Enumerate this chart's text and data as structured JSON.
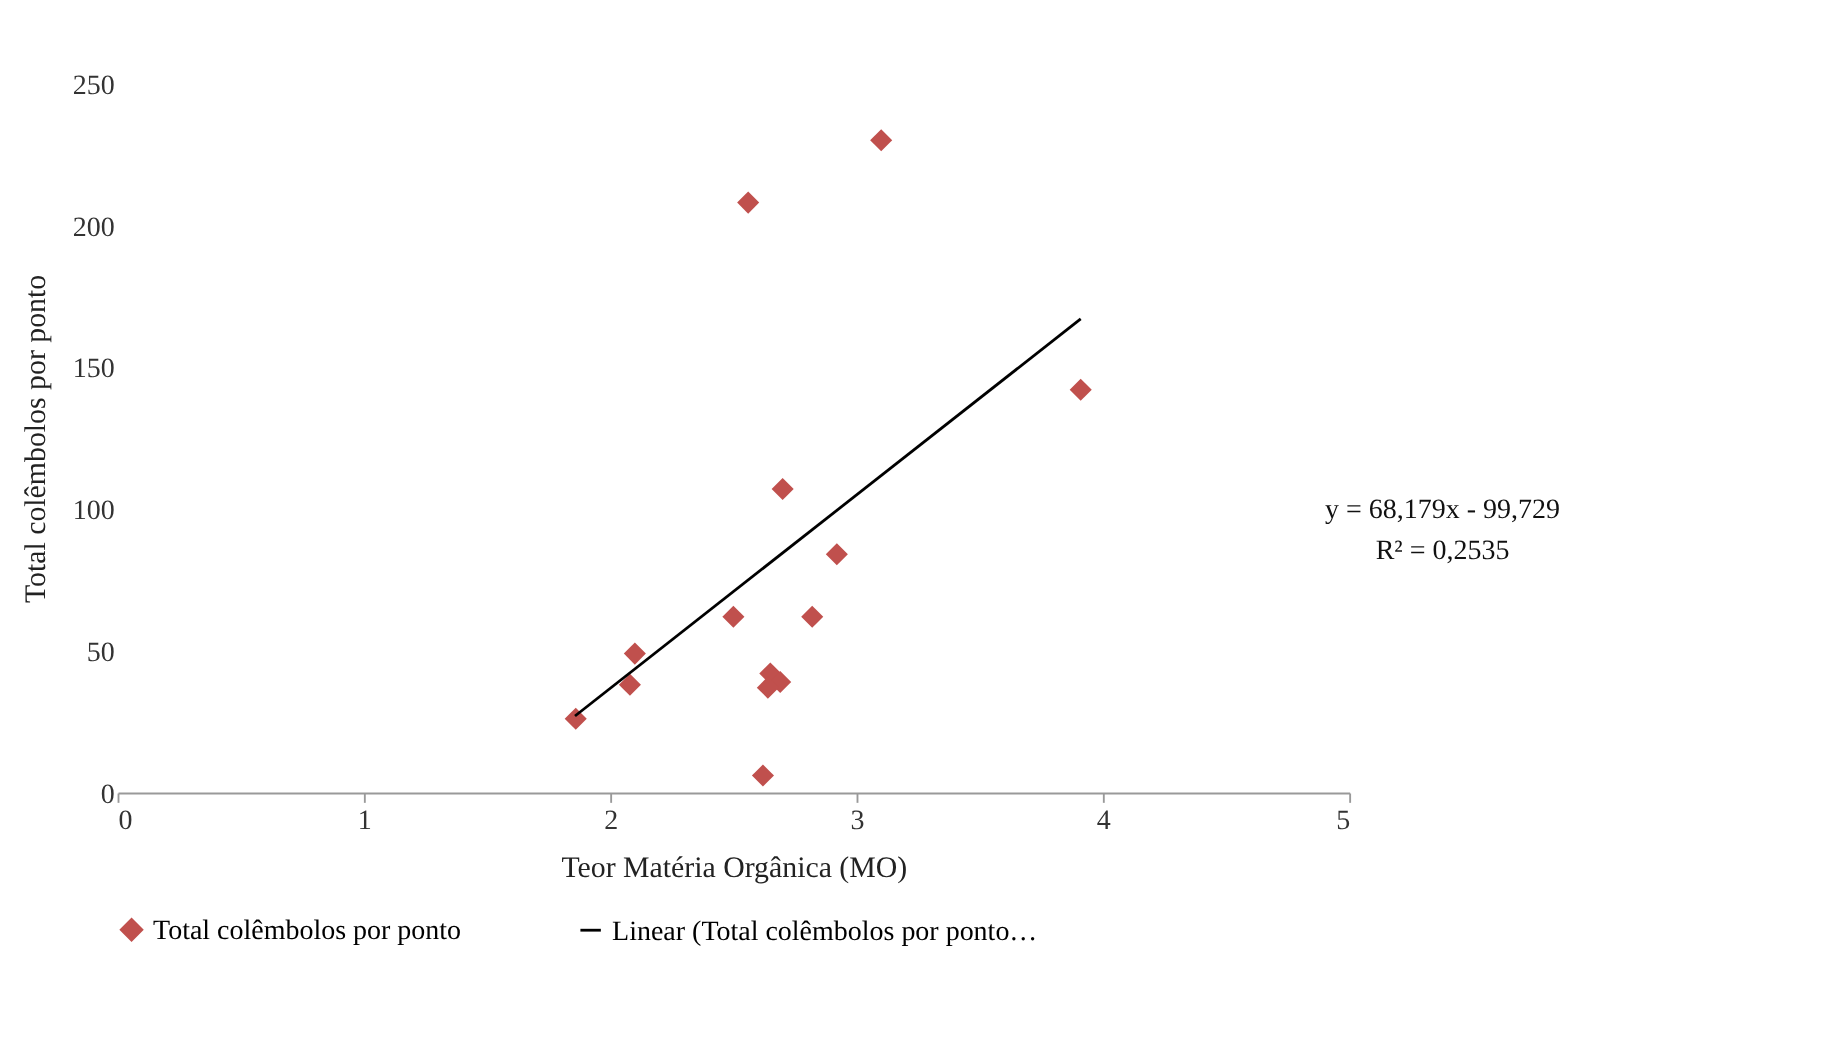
{
  "chart_data": {
    "type": "scatter",
    "xlabel": "Teor Matéria Orgânica (MO)",
    "ylabel": "Total colêmbolos por ponto",
    "xlim": [
      0,
      5
    ],
    "xticks": [
      0,
      1,
      2,
      3,
      4,
      5
    ],
    "ylim": [
      0,
      250
    ],
    "yticks": [
      0,
      50,
      100,
      150,
      200,
      250
    ],
    "grid": false,
    "legend": "bottom",
    "annotations": [
      "y = 68,179x - 99,729",
      "R² = 0,2535"
    ],
    "series": [
      {
        "name": "Total colêmbolos por ponto",
        "color": "#c0504d",
        "type": "scatter",
        "marker": "diamond",
        "x": [
          1.86,
          2.1,
          2.08,
          2.5,
          2.56,
          3.1,
          2.7,
          2.92,
          2.82,
          3.91,
          2.62,
          2.65,
          2.69,
          2.64
        ],
        "values": [
          26,
          49,
          38,
          62,
          208,
          230,
          107,
          84,
          62,
          142,
          6,
          42,
          39,
          37
        ]
      },
      {
        "name": "Linear (Total colêmbolos por ponto…",
        "color": "#000000",
        "type": "line",
        "x": [
          1.857,
          3.91
        ],
        "values": [
          27,
          167
        ],
        "marker": "none"
      }
    ]
  }
}
